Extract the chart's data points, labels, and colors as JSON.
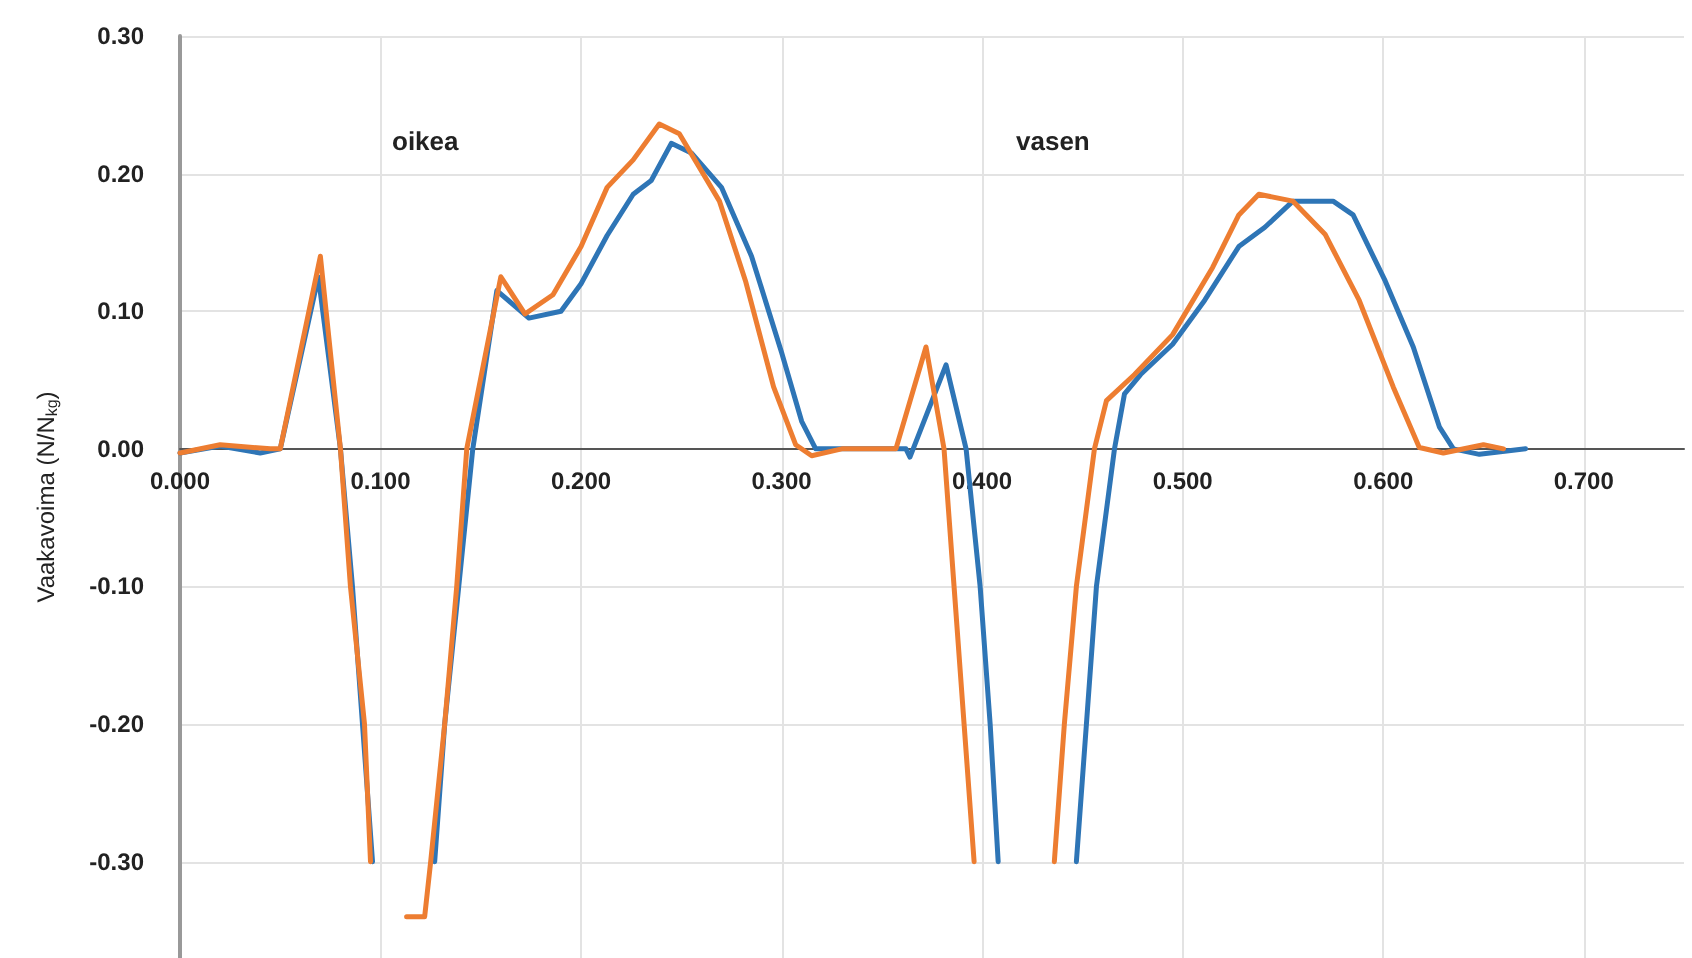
{
  "chart_data": {
    "type": "line",
    "ylabel": "Vaakavoima (N/N$_{kg}$)",
    "xlim": [
      0,
      0.75
    ],
    "ylim": [
      -0.37,
      0.3
    ],
    "xticks": [
      {
        "value": 0,
        "label": "0.000"
      },
      {
        "value": 0.1,
        "label": "0.100"
      },
      {
        "value": 0.2,
        "label": "0.200"
      },
      {
        "value": 0.3,
        "label": "0.300"
      },
      {
        "value": 0.4,
        "label": "0.400"
      },
      {
        "value": 0.5,
        "label": "0.500"
      },
      {
        "value": 0.6,
        "label": "0.600"
      },
      {
        "value": 0.7,
        "label": "0.700"
      }
    ],
    "yticks": [
      {
        "value": -0.3,
        "label": "-0.30"
      },
      {
        "value": -0.2,
        "label": "-0.20"
      },
      {
        "value": -0.1,
        "label": "-0.10"
      },
      {
        "value": 0,
        "label": "0.00"
      },
      {
        "value": 0.1,
        "label": "0.10"
      },
      {
        "value": 0.2,
        "label": "0.20"
      },
      {
        "value": 0.3,
        "label": "0.30"
      }
    ],
    "grid": true,
    "marker": "none",
    "line_style": "solid",
    "series": [
      {
        "color": "#2e75b6",
        "x": [
          0,
          0.02,
          0.04,
          0.05,
          0.069,
          0.08,
          0.086,
          0.096,
          0.099,
          0.11,
          0.122,
          0.127,
          0.132,
          0.139,
          0.146,
          0.158,
          0.174,
          0.19,
          0.2,
          0.213,
          0.226,
          0.235,
          0.245,
          0.255,
          0.27,
          0.285,
          0.3,
          0.31,
          0.317,
          0.33,
          0.362,
          0.364,
          0.382,
          0.392,
          0.399,
          0.404,
          0.408,
          0.411,
          0.43,
          0.442,
          0.447,
          0.452,
          0.457,
          0.466,
          0.471,
          0.479,
          0.495,
          0.511,
          0.528,
          0.541,
          0.555,
          0.575,
          0.585,
          0.601,
          0.615,
          0.628,
          0.635,
          0.648,
          0.671
        ],
        "values": [
          -0.003,
          0.002,
          -0.003,
          0,
          0.125,
          0,
          -0.1,
          -0.3,
          null,
          null,
          null,
          -0.3,
          -0.2,
          -0.1,
          0,
          0.115,
          0.095,
          0.1,
          0.12,
          0.155,
          0.185,
          0.195,
          0.222,
          0.215,
          0.19,
          0.14,
          0.07,
          0.02,
          0,
          0,
          0,
          -0.006,
          0.061,
          0,
          -0.1,
          -0.2,
          -0.3,
          null,
          null,
          null,
          -0.3,
          -0.2,
          -0.1,
          0,
          0.04,
          0.054,
          0.076,
          0.108,
          0.147,
          0.161,
          0.18,
          0.18,
          0.17,
          0.122,
          0.074,
          0.016,
          0,
          -0.004,
          0
        ]
      },
      {
        "color": "#ed7d31",
        "x": [
          0,
          0.02,
          0.045,
          0.05,
          0.07,
          0.08,
          0.085,
          0.092,
          0.095,
          0.098,
          0.105,
          0.11,
          0.113,
          0.122,
          0.125,
          0.132,
          0.138,
          0.143,
          0.16,
          0.172,
          0.186,
          0.2,
          0.213,
          0.226,
          0.239,
          0.249,
          0.269,
          0.282,
          0.296,
          0.307,
          0.315,
          0.33,
          0.357,
          0.372,
          0.381,
          0.386,
          0.391,
          0.396,
          0.399,
          0.42,
          0.431,
          0.436,
          0.441,
          0.447,
          0.456,
          0.462,
          0.476,
          0.495,
          0.515,
          0.528,
          0.538,
          0.555,
          0.571,
          0.588,
          0.605,
          0.618,
          0.63,
          0.65,
          0.66
        ],
        "values": [
          -0.003,
          0.003,
          0,
          0,
          0.14,
          0,
          -0.1,
          -0.2,
          -0.3,
          null,
          null,
          null,
          -0.34,
          -0.34,
          -0.3,
          -0.2,
          -0.1,
          0,
          0.125,
          0.098,
          0.112,
          0.147,
          0.19,
          0.21,
          0.236,
          0.229,
          0.18,
          0.122,
          0.045,
          0.003,
          -0.005,
          0,
          0,
          0.074,
          0,
          -0.1,
          -0.2,
          -0.3,
          null,
          null,
          null,
          -0.3,
          -0.2,
          -0.1,
          0,
          0.035,
          0.054,
          0.083,
          0.132,
          0.17,
          0.185,
          0.18,
          0.156,
          0.108,
          0.045,
          0.001,
          -0.003,
          0.003,
          0
        ]
      }
    ],
    "annotations": [
      "oikea",
      "vasen"
    ]
  }
}
